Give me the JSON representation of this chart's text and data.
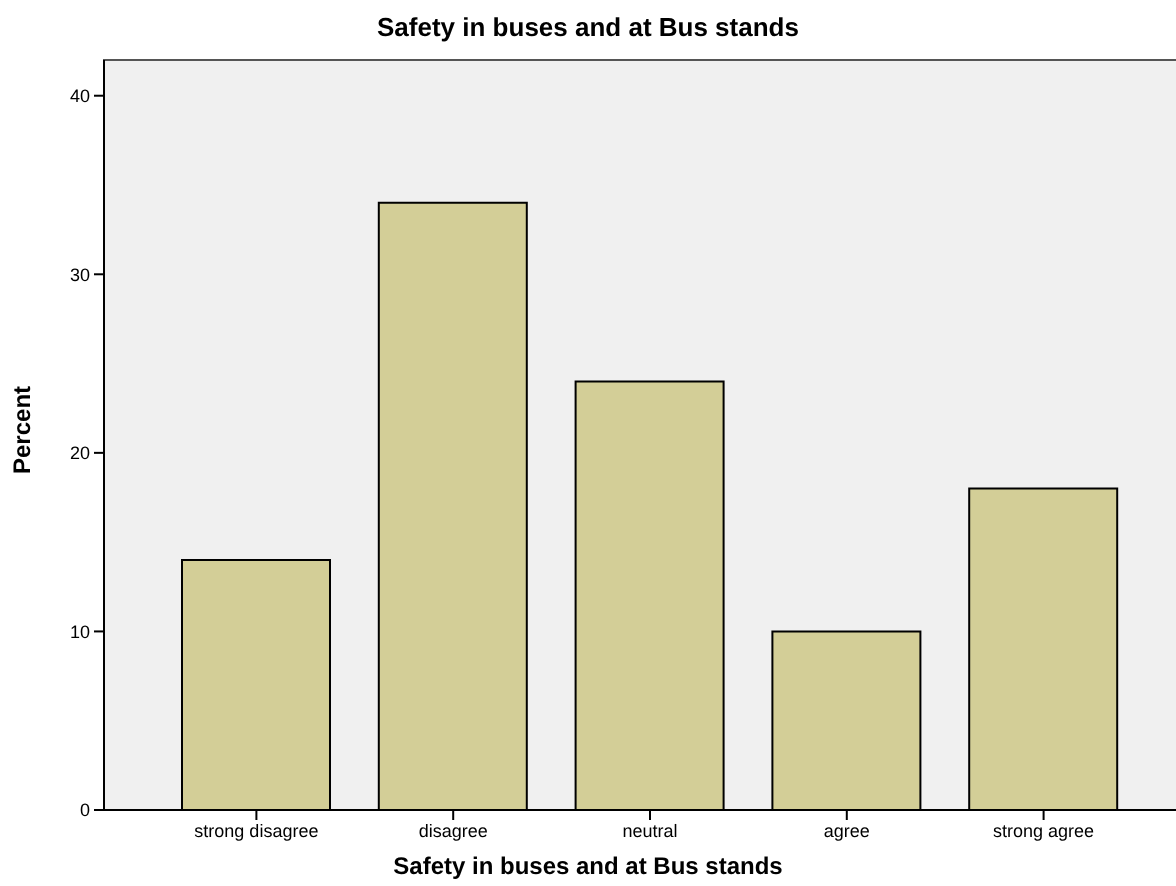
{
  "chart_data": {
    "type": "bar",
    "title": "Safety in buses and at Bus stands",
    "xlabel": "Safety in buses and at Bus stands",
    "ylabel": "Percent",
    "categories": [
      "strong disagree",
      "disagree",
      "neutral",
      "agree",
      "strong agree"
    ],
    "values": [
      14,
      34,
      24,
      10,
      18
    ],
    "color": "#d3ce97",
    "ylim": [
      0,
      42
    ],
    "yticks": [
      0,
      10,
      20,
      30,
      40
    ]
  }
}
